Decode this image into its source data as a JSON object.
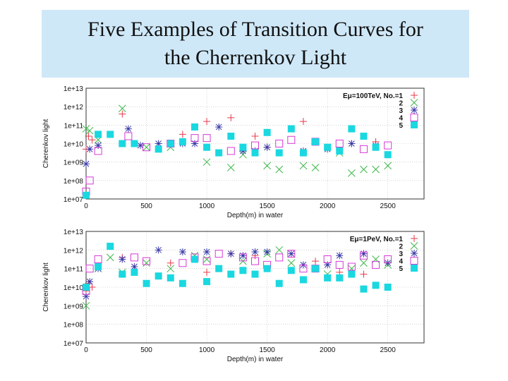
{
  "slide": {
    "title_line1": "Five Examples of Transition Curves for",
    "title_line2": "the Cherrenkov Light"
  },
  "chart_data": [
    {
      "type": "scatter",
      "xlabel": "Depth(m) in water",
      "ylabel": "Cherenkov light",
      "xlim": [
        0,
        2800
      ],
      "ylim_log10": [
        7,
        13
      ],
      "log_y": true,
      "x_ticks": [
        "0",
        "500",
        "1000",
        "1500",
        "2000",
        "2500"
      ],
      "y_ticks": [
        "1e+07",
        "1e+08",
        "1e+09",
        "1e+10",
        "1e+11",
        "1e+12",
        "1e+13"
      ],
      "grid": true,
      "legend_position": "top-right",
      "legend_title": "Eμ=100TeV, No.=1",
      "series": [
        {
          "name": "1",
          "marker": "plus",
          "color": "#e8384a",
          "x": [
            0,
            20,
            50,
            300,
            800,
            1000,
            1200,
            1400,
            1500,
            1800,
            1900,
            2200,
            2400
          ],
          "log10_y": [
            9.7,
            10.4,
            10.2,
            11.6,
            10.5,
            11.2,
            11.4,
            10.4,
            9.8,
            11.2,
            10.1,
            10.0,
            10.1
          ]
        },
        {
          "name": "2",
          "marker": "x",
          "color": "#3cb84a",
          "x": [
            0,
            30,
            100,
            300,
            500,
            700,
            1000,
            1200,
            1300,
            1500,
            1600,
            1800,
            1900,
            2100,
            2200,
            2300,
            2400,
            2500
          ],
          "log10_y": [
            10.8,
            10.7,
            10.2,
            11.9,
            9.8,
            9.8,
            9.0,
            8.7,
            9.4,
            8.8,
            8.6,
            8.8,
            8.7,
            9.5,
            8.4,
            8.6,
            8.6,
            8.8
          ]
        },
        {
          "name": "3",
          "marker": "star",
          "color": "#3a3aa8",
          "x": [
            0,
            30,
            100,
            350,
            450,
            600,
            800,
            900,
            1100,
            1300,
            1400,
            1500,
            1800,
            2000,
            2200,
            2400
          ],
          "log10_y": [
            8.9,
            9.7,
            9.9,
            10.8,
            9.9,
            10.0,
            10.0,
            10.0,
            10.9,
            9.6,
            9.6,
            9.8,
            9.6,
            9.7,
            10.0,
            9.9
          ]
        },
        {
          "name": "4",
          "marker": "square-open",
          "color": "#d63ad6",
          "x": [
            0,
            30,
            100,
            350,
            500,
            700,
            900,
            1000,
            1200,
            1400,
            1600,
            1700,
            1900,
            2100,
            2300,
            2500
          ],
          "log10_y": [
            7.4,
            8.0,
            9.6,
            10.4,
            9.8,
            10.0,
            10.3,
            10.3,
            9.6,
            9.9,
            10.0,
            10.2,
            10.1,
            10.0,
            9.7,
            9.9
          ]
        },
        {
          "name": "5",
          "marker": "square-filled",
          "color": "#1ad8e0",
          "x": [
            0,
            100,
            200,
            300,
            400,
            600,
            700,
            800,
            900,
            1000,
            1100,
            1200,
            1300,
            1400,
            1500,
            1600,
            1700,
            1800,
            1900,
            2000,
            2100,
            2200,
            2300,
            2400,
            2500
          ],
          "log10_y": [
            7.2,
            10.5,
            10.5,
            10.0,
            10.0,
            9.7,
            10.0,
            10.1,
            10.9,
            9.8,
            9.5,
            10.4,
            9.8,
            9.5,
            10.6,
            9.5,
            10.8,
            9.5,
            10.1,
            9.8,
            9.6,
            10.8,
            10.4,
            9.8,
            9.4
          ]
        }
      ]
    },
    {
      "type": "scatter",
      "xlabel": "Depth(m) in water",
      "ylabel": "Cherenkov light",
      "xlim": [
        0,
        2800
      ],
      "ylim_log10": [
        7,
        13
      ],
      "log_y": true,
      "x_ticks": [
        "0",
        "500",
        "1000",
        "1500",
        "2000",
        "2500"
      ],
      "y_ticks": [
        "1e+07",
        "1e+08",
        "1e+09",
        "1e+10",
        "1e+11",
        "1e+12",
        "1e+13"
      ],
      "grid": true,
      "legend_position": "top-right",
      "legend_title": "Eμ=1PeV, No.=1",
      "series": [
        {
          "name": "1",
          "marker": "plus",
          "color": "#e8384a",
          "x": [
            0,
            20,
            50,
            300,
            700,
            1000,
            1200,
            1400,
            1900,
            2100,
            2300
          ],
          "log10_y": [
            9.8,
            10.2,
            10.0,
            11.6,
            11.3,
            10.8,
            11.8,
            11.7,
            11.4,
            10.8,
            10.7
          ]
        },
        {
          "name": "2",
          "marker": "x",
          "color": "#3cb84a",
          "x": [
            0,
            100,
            200,
            300,
            500,
            700,
            900,
            1000,
            1300,
            1500,
            1600,
            1700,
            1900,
            2000,
            2200,
            2300,
            2400,
            2500
          ],
          "log10_y": [
            9.0,
            11.0,
            11.6,
            10.8,
            11.3,
            11.0,
            11.7,
            11.5,
            11.4,
            11.8,
            12.0,
            11.3,
            11.0,
            10.7,
            11.0,
            11.3,
            11.5,
            11.2
          ]
        },
        {
          "name": "3",
          "marker": "star",
          "color": "#3a3aa8",
          "x": [
            0,
            30,
            100,
            300,
            400,
            600,
            800,
            1000,
            1200,
            1300,
            1400,
            1500,
            1700,
            1800,
            2000,
            2100,
            2300,
            2500
          ],
          "log10_y": [
            9.5,
            10.3,
            11.0,
            11.5,
            11.1,
            12.0,
            11.9,
            11.9,
            11.8,
            11.7,
            11.9,
            11.9,
            11.8,
            11.2,
            11.2,
            11.7,
            11.8,
            11.3
          ]
        },
        {
          "name": "4",
          "marker": "square-open",
          "color": "#d63ad6",
          "x": [
            0,
            30,
            100,
            400,
            500,
            800,
            900,
            1000,
            1100,
            1300,
            1400,
            1500,
            1600,
            1700,
            1800,
            1900,
            2000,
            2100,
            2200,
            2300,
            2400,
            2500
          ],
          "log10_y": [
            9.8,
            11.0,
            11.5,
            11.6,
            11.4,
            11.3,
            11.6,
            11.4,
            11.8,
            11.6,
            11.4,
            11.2,
            11.6,
            11.8,
            11.0,
            11.0,
            11.5,
            11.2,
            11.1,
            11.7,
            11.2,
            11.5
          ]
        },
        {
          "name": "5",
          "marker": "square-filled",
          "color": "#1ad8e0",
          "x": [
            0,
            100,
            200,
            300,
            400,
            500,
            600,
            700,
            800,
            900,
            1000,
            1100,
            1200,
            1300,
            1400,
            1500,
            1600,
            1700,
            1800,
            1900,
            2000,
            2100,
            2200,
            2300,
            2400,
            2500
          ],
          "log10_y": [
            10.0,
            11.1,
            12.2,
            10.7,
            10.8,
            10.2,
            10.6,
            10.5,
            10.2,
            11.5,
            10.3,
            11.0,
            10.7,
            10.9,
            10.7,
            11.0,
            10.2,
            10.9,
            10.4,
            11.0,
            10.5,
            10.5,
            10.7,
            9.9,
            10.1,
            10.0
          ]
        }
      ]
    }
  ]
}
